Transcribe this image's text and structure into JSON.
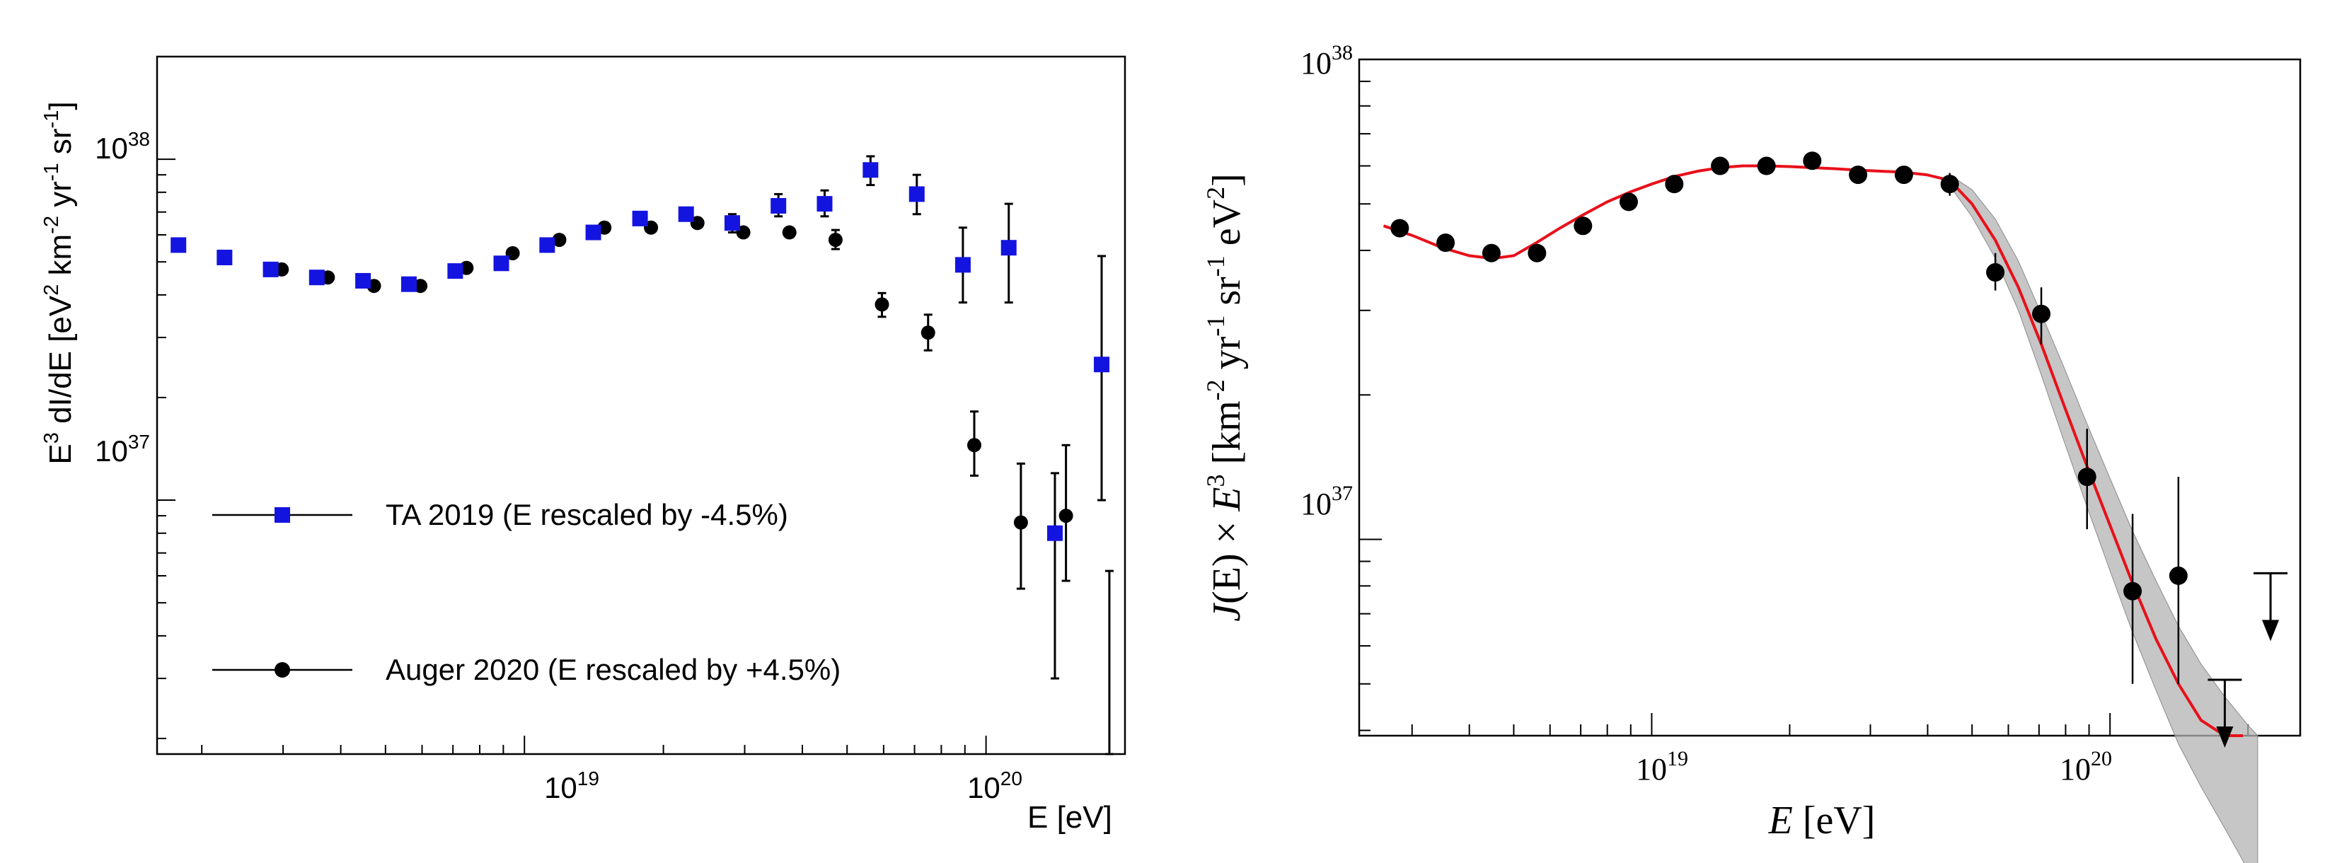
{
  "chart_data": [
    {
      "type": "scatter",
      "ylabel_parts": {
        "base": "E",
        "sup3": "3",
        "rest": " dI/dE [eV",
        "sup2": "2",
        "km": " km",
        "supm2": "-2",
        "yr": " yr",
        "supm1a": "-1",
        "sr": " sr",
        "supm1b": "-1",
        "close": "]"
      },
      "xlabel": "E [eV]",
      "xlim": [
        1.6e+18,
        2e+20
      ],
      "ylim": [
        1.8e+36,
        2e+38
      ],
      "x_ticks": [
        {
          "mant": "10",
          "exp": "19",
          "value": 1e+19
        },
        {
          "mant": "10",
          "exp": "20",
          "value": 1e+20
        }
      ],
      "y_ticks": [
        {
          "mant": "10",
          "exp": "37",
          "value": 1e+37
        },
        {
          "mant": "10",
          "exp": "38",
          "value": 1e+38
        }
      ],
      "series": [
        {
          "name": "TA 2019 (E rescaled by -4.5%)",
          "color": "#1414e0",
          "marker": "square",
          "points": [
            {
              "x": 1.78e+18,
              "y": 5.6e+37
            },
            {
              "x": 2.24e+18,
              "y": 5.15e+37
            },
            {
              "x": 2.82e+18,
              "y": 4.75e+37
            },
            {
              "x": 3.55e+18,
              "y": 4.5e+37
            },
            {
              "x": 4.47e+18,
              "y": 4.4e+37
            },
            {
              "x": 5.62e+18,
              "y": 4.3e+37
            },
            {
              "x": 7.08e+18,
              "y": 4.7e+37
            },
            {
              "x": 8.91e+18,
              "y": 4.95e+37
            },
            {
              "x": 1.12e+19,
              "y": 5.6e+37
            },
            {
              "x": 1.41e+19,
              "y": 6.1e+37
            },
            {
              "x": 1.78e+19,
              "y": 6.7e+37
            },
            {
              "x": 2.24e+19,
              "y": 6.9e+37
            },
            {
              "x": 2.82e+19,
              "y": 6.5e+37,
              "lo": 6.1e+37,
              "hi": 6.9e+37
            },
            {
              "x": 3.55e+19,
              "y": 7.3e+37,
              "lo": 6.8e+37,
              "hi": 7.9e+37
            },
            {
              "x": 4.47e+19,
              "y": 7.4e+37,
              "lo": 6.8e+37,
              "hi": 8.1e+37
            },
            {
              "x": 5.62e+19,
              "y": 9.3e+37,
              "lo": 8.4e+37,
              "hi": 1.02e+38
            },
            {
              "x": 7.08e+19,
              "y": 7.9e+37,
              "lo": 6.9e+37,
              "hi": 9e+37
            },
            {
              "x": 8.91e+19,
              "y": 4.9e+37,
              "lo": 3.8e+37,
              "hi": 6.3e+37
            },
            {
              "x": 1.12e+20,
              "y": 5.5e+37,
              "lo": 3.8e+37,
              "hi": 7.4e+37
            },
            {
              "x": 1.41e+20,
              "y": 8e+36,
              "lo": 3e+36,
              "hi": 1.2e+37
            },
            {
              "x": 1.78e+20,
              "y": 2.5e+37,
              "lo": 1e+37,
              "hi": 5.2e+37
            }
          ]
        },
        {
          "name": "Auger 2020 (E rescaled by +4.5%)",
          "color": "#000000",
          "marker": "circle",
          "points": [
            {
              "x": 2.98e+18,
              "y": 4.75e+37
            },
            {
              "x": 3.75e+18,
              "y": 4.5e+37
            },
            {
              "x": 4.72e+18,
              "y": 4.25e+37
            },
            {
              "x": 5.95e+18,
              "y": 4.25e+37
            },
            {
              "x": 7.49e+18,
              "y": 4.8e+37
            },
            {
              "x": 9.43e+18,
              "y": 5.3e+37
            },
            {
              "x": 1.19e+19,
              "y": 5.8e+37
            },
            {
              "x": 1.49e+19,
              "y": 6.3e+37
            },
            {
              "x": 1.88e+19,
              "y": 6.3e+37
            },
            {
              "x": 2.37e+19,
              "y": 6.5e+37
            },
            {
              "x": 2.98e+19,
              "y": 6.1e+37
            },
            {
              "x": 3.75e+19,
              "y": 6.1e+37
            },
            {
              "x": 4.72e+19,
              "y": 5.8e+37,
              "lo": 5.45e+37,
              "hi": 6.2e+37
            },
            {
              "x": 5.95e+19,
              "y": 3.75e+37,
              "lo": 3.45e+37,
              "hi": 4.05e+37
            },
            {
              "x": 7.49e+19,
              "y": 3.1e+37,
              "lo": 2.75e+37,
              "hi": 3.5e+37
            },
            {
              "x": 9.43e+19,
              "y": 1.45e+37,
              "lo": 1.18e+37,
              "hi": 1.82e+37
            },
            {
              "x": 1.19e+20,
              "y": 8.6e+36,
              "lo": 5.5e+36,
              "hi": 1.28e+37
            },
            {
              "x": 1.49e+20,
              "y": 9e+36,
              "lo": 5.8e+36,
              "hi": 1.45e+37
            },
            {
              "x": 1.85e+20,
              "y": null,
              "lo": 1.8e+36,
              "hi": 6.2e+36
            }
          ]
        }
      ]
    },
    {
      "type": "line",
      "ylabel": "J(E) × E³ [km⁻² yr⁻¹ sr⁻¹ eV²]",
      "ylabel_parts": {
        "j": "J",
        "e": "(E)",
        "times": " × ",
        "E": "E",
        "sup3": "3",
        "bracket": " [km",
        "supm2": "-2",
        "yr": " yr",
        "supm1a": "-1",
        "sr": " sr",
        "supm1b": "-1",
        "ev": " eV",
        "sup2": "2",
        "close": "]"
      },
      "xlabel_parts": {
        "E": "E",
        "unit": " [eV]"
      },
      "xlim": [
        2.3e+18,
        2.6e+20
      ],
      "ylim": [
        3.9e+36,
        1e+38
      ],
      "x_ticks": [
        {
          "mant": "10",
          "exp": "19",
          "value": 1e+19
        },
        {
          "mant": "10",
          "exp": "20",
          "value": 1e+20
        }
      ],
      "y_ticks": [
        {
          "mant": "10",
          "exp": "37",
          "value": 1e+37
        },
        {
          "mant": "10",
          "exp": "38",
          "value": 1e+38
        }
      ],
      "fit_color": "#e8101a",
      "fit": {
        "x": [
          2.6e+18,
          3e+18,
          3.5e+18,
          4e+18,
          4.5e+18,
          5e+18,
          5.6e+18,
          6.3e+18,
          7.1e+18,
          8e+18,
          9e+18,
          1e+19,
          1.12e+19,
          1.26e+19,
          1.41e+19,
          1.58e+19,
          1.78e+19,
          2e+19,
          2.24e+19,
          2.51e+19,
          2.82e+19,
          3.16e+19,
          3.55e+19,
          3.98e+19,
          4.47e+19,
          5e+19,
          5.62e+19,
          6.31e+19,
          7.08e+19,
          7.94e+19,
          8.91e+19,
          1e+20,
          1.12e+20,
          1.26e+20,
          1.41e+20,
          1.58e+20,
          1.78e+20,
          1.95e+20
        ],
        "y": [
          4.5e+37,
          4.3e+37,
          4.05e+37,
          3.9e+37,
          3.85e+37,
          3.9e+37,
          4.15e+37,
          4.45e+37,
          4.75e+37,
          5.05e+37,
          5.3e+37,
          5.5e+37,
          5.7e+37,
          5.85e+37,
          5.95e+37,
          6e+37,
          6e+37,
          5.98e+37,
          5.95e+37,
          5.92e+37,
          5.88e+37,
          5.85e+37,
          5.82e+37,
          5.75e+37,
          5.6e+37,
          5e+37,
          4.2e+37,
          3.35e+37,
          2.55e+37,
          1.9e+37,
          1.42e+37,
          1.07e+37,
          8.1e+36,
          6.2e+36,
          5e+36,
          4.2e+36,
          3.6e+36,
          3.2e+36
        ]
      },
      "band": {
        "x": [
          4.47e+19,
          5e+19,
          5.62e+19,
          6.31e+19,
          7.08e+19,
          7.94e+19,
          8.91e+19,
          1e+20,
          1.12e+20,
          1.26e+20,
          1.41e+20,
          1.58e+20,
          1.78e+20,
          2e+20,
          2.1e+20
        ],
        "lo": [
          5.45e+37,
          4.7e+37,
          3.85e+37,
          3e+37,
          2.2e+37,
          1.6e+37,
          1.17e+37,
          8.6e+36,
          6.4e+36,
          4.85e+36,
          3.75e+36,
          3.05e+36,
          2.5e+36,
          2.05e+36,
          1.9e+36
        ],
        "hi": [
          5.75e+37,
          5.35e+37,
          4.65e+37,
          3.8e+37,
          2.95e+37,
          2.28e+37,
          1.74e+37,
          1.34e+37,
          1.04e+37,
          8.2e+36,
          6.6e+36,
          5.5e+36,
          4.7e+36,
          4.1e+36,
          3.9e+36
        ]
      },
      "points": [
        {
          "x": 2.82e+18,
          "y": 4.45e+37
        },
        {
          "x": 3.55e+18,
          "y": 4.15e+37
        },
        {
          "x": 4.47e+18,
          "y": 3.95e+37
        },
        {
          "x": 5.62e+18,
          "y": 3.95e+37
        },
        {
          "x": 7.08e+18,
          "y": 4.5e+37
        },
        {
          "x": 8.91e+18,
          "y": 5.05e+37
        },
        {
          "x": 1.12e+19,
          "y": 5.5e+37
        },
        {
          "x": 1.41e+19,
          "y": 6e+37
        },
        {
          "x": 1.78e+19,
          "y": 6e+37
        },
        {
          "x": 2.24e+19,
          "y": 6.15e+37
        },
        {
          "x": 2.82e+19,
          "y": 5.75e+37
        },
        {
          "x": 3.55e+19,
          "y": 5.75e+37
        },
        {
          "x": 4.47e+19,
          "y": 5.5e+37,
          "lo": 5.2e+37,
          "hi": 5.8e+37
        },
        {
          "x": 5.62e+19,
          "y": 3.6e+37,
          "lo": 3.3e+37,
          "hi": 3.95e+37
        },
        {
          "x": 7.08e+19,
          "y": 2.95e+37,
          "lo": 2.55e+37,
          "hi": 3.35e+37
        },
        {
          "x": 8.91e+19,
          "y": 1.35e+37,
          "lo": 1.05e+37,
          "hi": 1.7e+37
        },
        {
          "x": 1.12e+20,
          "y": 7.8e+36,
          "lo": 5e+36,
          "hi": 1.13e+37
        },
        {
          "x": 1.41e+20,
          "y": 8.4e+36,
          "lo": 5e+36,
          "hi": 1.35e+37
        }
      ],
      "upper_limits": [
        {
          "x": 1.78e+20,
          "y": 5.1e+36
        },
        {
          "x": 2.24e+20,
          "y": 8.5e+36
        }
      ]
    }
  ]
}
